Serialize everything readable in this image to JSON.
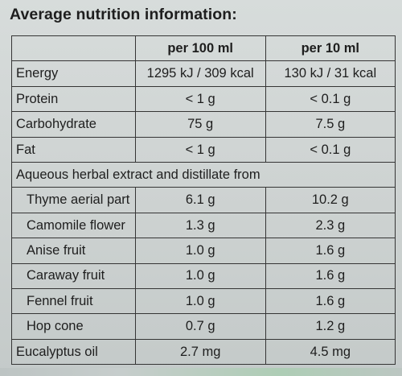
{
  "title": "Average nutrition information:",
  "columns": [
    "",
    "per 100 ml",
    "per 10 ml"
  ],
  "nutrients": [
    {
      "label": "Energy",
      "per100": "1295 kJ / 309 kcal",
      "per10": "130 kJ / 31 kcal"
    },
    {
      "label": "Protein",
      "per100": "< 1 g",
      "per10": "< 0.1 g"
    },
    {
      "label": "Carbohydrate",
      "per100": "75 g",
      "per10": "7.5 g"
    },
    {
      "label": "Fat",
      "per100": "< 1 g",
      "per10": "< 0.1 g"
    }
  ],
  "section_label": "Aqueous herbal extract and distillate from",
  "ingredients": [
    {
      "label": "Thyme aerial part",
      "per100": "6.1 g",
      "per10": "10.2 g"
    },
    {
      "label": "Camomile flower",
      "per100": "1.3 g",
      "per10": "2.3 g"
    },
    {
      "label": "Anise fruit",
      "per100": "1.0 g",
      "per10": "1.6 g"
    },
    {
      "label": "Caraway fruit",
      "per100": "1.0 g",
      "per10": "1.6 g"
    },
    {
      "label": "Fennel fruit",
      "per100": "1.0 g",
      "per10": "1.6 g"
    },
    {
      "label": "Hop cone",
      "per100": "0.7 g",
      "per10": "1.2 g"
    }
  ],
  "last_row": {
    "label": "Eucalyptus oil",
    "per100": "2.7 mg",
    "per10": "4.5 mg"
  }
}
